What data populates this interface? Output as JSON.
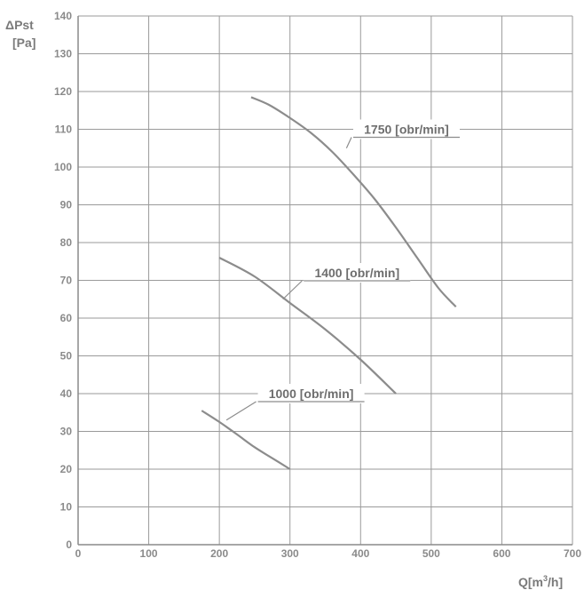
{
  "chart_data": {
    "type": "line",
    "ylabel_line1": "ΔPst",
    "ylabel_line2": "[Pa]",
    "xlabel_main": "Q[m",
    "xlabel_sup": "3",
    "xlabel_end": "/h]",
    "xlim": [
      0,
      700
    ],
    "ylim": [
      0,
      140
    ],
    "xticks": [
      0,
      100,
      200,
      300,
      400,
      500,
      600,
      700
    ],
    "yticks": [
      0,
      10,
      20,
      30,
      40,
      50,
      60,
      70,
      80,
      90,
      100,
      110,
      120,
      130,
      140
    ],
    "grid": true,
    "series": [
      {
        "name": "1000 [obr/min]",
        "color": "#8c8c8c",
        "label_at": [
          330,
          40
        ],
        "label_leader_from": [
          210,
          33
        ],
        "x": [
          175,
          200,
          225,
          250,
          275,
          300
        ],
        "y": [
          35.5,
          32.5,
          29.2,
          25.8,
          22.9,
          20
        ]
      },
      {
        "name": "1400 [obr/min]",
        "color": "#8c8c8c",
        "label_at": [
          395,
          72
        ],
        "label_leader_from": [
          290,
          65
        ],
        "x": [
          200,
          250,
          300,
          350,
          400,
          450
        ],
        "y": [
          76,
          71,
          64,
          57,
          49,
          40
        ]
      },
      {
        "name": "1750 [obr/min]",
        "color": "#8c8c8c",
        "label_at": [
          465,
          110
        ],
        "label_leader_from": [
          380,
          105
        ],
        "x": [
          245,
          270,
          300,
          330,
          360,
          390,
          420,
          450,
          480,
          510,
          535
        ],
        "y": [
          118.5,
          116.5,
          113,
          109,
          104,
          98,
          91.5,
          84,
          76,
          68,
          63
        ]
      }
    ]
  }
}
